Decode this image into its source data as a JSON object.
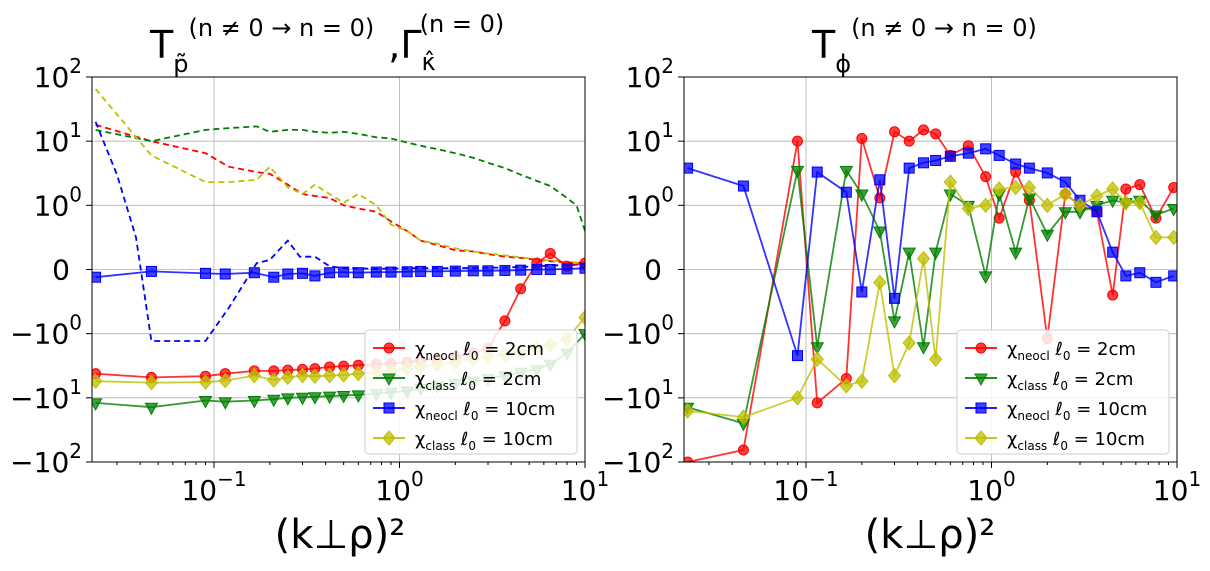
{
  "chart_data": [
    {
      "type": "line",
      "title": {
        "base": "T",
        "sub": "p̃",
        "sup": "(n ≠ 0 → n = 0)",
        "sep": ",",
        "base2": "Γ",
        "sub2": "κ̂",
        "sup2": "(n = 0)"
      },
      "xlabel": "(k⊥ρ)²",
      "xscale": "log",
      "yscale": "symlog",
      "xlim": [
        0.022,
        10
      ],
      "ylim": [
        -100,
        100
      ],
      "xticks": [
        {
          "value": 0.1,
          "label": "10",
          "exp": "−1"
        },
        {
          "value": 1,
          "label": "10",
          "exp": "0"
        },
        {
          "value": 10,
          "label": "10",
          "exp": "1"
        }
      ],
      "yticks": [
        {
          "value": 100,
          "label": "10",
          "exp": "2"
        },
        {
          "value": 10,
          "label": "10",
          "exp": "1"
        },
        {
          "value": 1,
          "label": "10",
          "exp": "0"
        },
        {
          "value": 0,
          "label": "0",
          "exp": ""
        },
        {
          "value": -1,
          "label": "−10",
          "exp": "0"
        },
        {
          "value": -10,
          "label": "−10",
          "exp": "1"
        },
        {
          "value": -100,
          "label": "−10",
          "exp": "2"
        }
      ],
      "legend_position": "lower-right",
      "series": [
        {
          "name": "χneocl ℓ0 = 2cm",
          "legend": {
            "chi": "χ",
            "sub": "neocl",
            "rest": " ℓ",
            "rsub": "0",
            "tail": " = 2cm"
          },
          "color": "#ff0000",
          "marker": "circle",
          "style": "solid",
          "x": [
            0.023,
            0.046,
            0.09,
            0.115,
            0.165,
            0.21,
            0.25,
            0.3,
            0.35,
            0.42,
            0.5,
            0.6,
            0.75,
            0.9,
            1.1,
            1.3,
            1.6,
            2.0,
            2.5,
            3.0,
            3.7,
            4.5,
            5.5,
            6.5,
            8.0,
            10.0
          ],
          "y": [
            -4.2,
            -4.8,
            -4.6,
            -4.2,
            -3.8,
            -3.8,
            -3.7,
            -3.6,
            -3.5,
            -3.3,
            -3.2,
            -3.1,
            -3.0,
            -2.9,
            -2.8,
            -2.6,
            -2.5,
            -2.3,
            -2.0,
            -1.7,
            -0.8,
            -0.3,
            0.1,
            0.25,
            0.05,
            0.1
          ]
        },
        {
          "name": "χclass ℓ0 = 2cm",
          "legend": {
            "chi": "χ",
            "sub": "class",
            "rest": " ℓ",
            "rsub": "0",
            "tail": " = 2cm"
          },
          "color": "#008000",
          "marker": "triangle-down",
          "style": "solid",
          "x": [
            0.023,
            0.046,
            0.09,
            0.115,
            0.165,
            0.21,
            0.25,
            0.3,
            0.35,
            0.42,
            0.5,
            0.6,
            0.75,
            0.9,
            1.1,
            1.3,
            1.6,
            2.0,
            2.5,
            3.0,
            3.7,
            4.5,
            5.5,
            6.5,
            8.0,
            10.0
          ],
          "y": [
            -12,
            -14,
            -11,
            -11.5,
            -11,
            -10.5,
            -10,
            -9.8,
            -9.6,
            -9.4,
            -9.2,
            -9.0,
            -8.6,
            -8.2,
            -7.8,
            -7.2,
            -6.5,
            -6,
            -5.5,
            -5,
            -4.5,
            -4.0,
            -3.6,
            -3.0,
            -2.0,
            -1.0
          ]
        },
        {
          "name": "χneocl ℓ0 = 10cm",
          "legend": {
            "chi": "χ",
            "sub": "neocl",
            "rest": " ℓ",
            "rsub": "0",
            "tail": " = 10cm"
          },
          "color": "#0000ff",
          "marker": "square",
          "style": "solid",
          "x": [
            0.023,
            0.046,
            0.09,
            0.115,
            0.165,
            0.21,
            0.25,
            0.3,
            0.35,
            0.42,
            0.5,
            0.6,
            0.75,
            0.9,
            1.1,
            1.3,
            1.6,
            2.0,
            2.5,
            3.0,
            3.7,
            4.5,
            5.5,
            6.5,
            8.0,
            10.0
          ],
          "y": [
            -0.12,
            -0.03,
            -0.06,
            -0.07,
            -0.05,
            -0.12,
            -0.07,
            -0.06,
            -0.1,
            -0.05,
            -0.04,
            -0.05,
            -0.04,
            -0.04,
            -0.035,
            -0.03,
            -0.03,
            -0.025,
            -0.02,
            -0.02,
            -0.015,
            -0.01,
            0.0,
            0.0,
            0.01,
            0.02
          ]
        },
        {
          "name": "χclass ℓ0 = 10cm",
          "legend": {
            "chi": "χ",
            "sub": "class",
            "rest": " ℓ",
            "rsub": "0",
            "tail": " = 10cm"
          },
          "color": "#bfbf00",
          "marker": "diamond",
          "style": "solid",
          "x": [
            0.023,
            0.046,
            0.09,
            0.115,
            0.165,
            0.21,
            0.25,
            0.3,
            0.35,
            0.42,
            0.5,
            0.6,
            0.75,
            0.9,
            1.1,
            1.3,
            1.6,
            2.0,
            2.5,
            3.0,
            3.7,
            4.5,
            5.5,
            6.5,
            8.0,
            10.0
          ],
          "y": [
            -5.5,
            -5.8,
            -5.7,
            -5.4,
            -4.5,
            -5.3,
            -4.8,
            -4.5,
            -4.6,
            -4.5,
            -4.4,
            -4.2,
            -4.0,
            -3.8,
            -3.5,
            -3.2,
            -3.0,
            -2.8,
            -2.5,
            -2.3,
            -2.1,
            -1.9,
            -1.7,
            -1.5,
            -1.2,
            -0.75
          ]
        },
        {
          "name": "red dashed",
          "color": "#ff0000",
          "marker": "none",
          "style": "dashed",
          "x": [
            0.023,
            0.046,
            0.09,
            0.12,
            0.17,
            0.2,
            0.25,
            0.3,
            0.35,
            0.42,
            0.5,
            0.6,
            0.75,
            0.9,
            1.1,
            1.3,
            1.6,
            2.0,
            2.5,
            3.0,
            3.7,
            4.5,
            5.5,
            6.5,
            8.0,
            10.0
          ],
          "y": [
            18,
            10,
            6.5,
            4,
            3.3,
            3.1,
            2.1,
            1.5,
            1.4,
            1.3,
            1.0,
            0.95,
            0.9,
            0.75,
            0.6,
            0.45,
            0.38,
            0.3,
            0.28,
            0.24,
            0.2,
            0.18,
            0.15,
            0.13,
            0.11,
            0.1
          ]
        },
        {
          "name": "green dashed",
          "color": "#008000",
          "marker": "none",
          "style": "dashed",
          "x": [
            0.023,
            0.046,
            0.09,
            0.12,
            0.17,
            0.2,
            0.25,
            0.3,
            0.35,
            0.42,
            0.5,
            0.6,
            0.75,
            0.9,
            1.1,
            1.3,
            1.6,
            2.0,
            2.5,
            3.0,
            3.7,
            4.5,
            5.5,
            6.5,
            8.0,
            9.0,
            10.0
          ],
          "y": [
            15,
            10,
            15,
            16,
            17,
            14,
            15,
            15,
            14,
            13.5,
            14,
            13,
            11.5,
            11,
            9.5,
            8.5,
            7.5,
            6.5,
            5.5,
            4.6,
            3.8,
            3.0,
            2.4,
            2.0,
            1.3,
            1.0,
            0.6
          ]
        },
        {
          "name": "blue dashed",
          "color": "#0000ff",
          "marker": "none",
          "style": "dashed",
          "x": [
            0.023,
            0.03,
            0.038,
            0.046,
            0.06,
            0.075,
            0.09,
            0.12,
            0.17,
            0.2,
            0.25,
            0.29,
            0.35,
            0.42,
            0.5,
            0.6,
            0.75,
            0.9,
            1.1,
            1.3,
            1.6,
            2.0,
            2.5,
            3.0,
            3.7,
            4.5,
            5.5,
            6.5,
            8.0,
            10.0
          ],
          "y": [
            20,
            3,
            0.5,
            -1.3,
            -1.3,
            -1.3,
            -1.3,
            -0.6,
            0.1,
            0.15,
            0.45,
            0.2,
            0.2,
            0.05,
            0.02,
            0.02,
            0.01,
            0.015,
            0.02,
            0.02,
            0.02,
            0.02,
            0.025,
            0.03,
            0.03,
            0.04,
            0.05,
            0.06,
            0.07,
            0.08
          ]
        },
        {
          "name": "yellow dashed",
          "color": "#bfbf00",
          "marker": "none",
          "style": "dashed",
          "x": [
            0.023,
            0.046,
            0.09,
            0.12,
            0.17,
            0.2,
            0.25,
            0.3,
            0.35,
            0.42,
            0.5,
            0.6,
            0.75,
            0.9,
            1.1,
            1.3,
            1.6,
            2.0,
            2.5,
            3.0,
            3.7,
            4.5,
            5.5,
            6.5,
            8.0,
            10.0
          ],
          "y": [
            65,
            6,
            2.3,
            2.3,
            2.5,
            4,
            1.9,
            1.5,
            2.1,
            1.5,
            1.1,
            1.5,
            1.0,
            0.7,
            0.6,
            0.45,
            0.4,
            0.33,
            0.28,
            0.25,
            0.22,
            0.19,
            0.16,
            0.14,
            0.12,
            0.1
          ]
        }
      ]
    },
    {
      "type": "line",
      "title": {
        "base": "T",
        "sub": "ϕ",
        "sup": "(n ≠ 0 → n = 0)"
      },
      "xlabel": "(k⊥ρ)²",
      "xscale": "log",
      "yscale": "symlog",
      "xlim": [
        0.022,
        10
      ],
      "ylim": [
        -100,
        100
      ],
      "xticks": [
        {
          "value": 0.1,
          "label": "10",
          "exp": "−1"
        },
        {
          "value": 1,
          "label": "10",
          "exp": "0"
        },
        {
          "value": 10,
          "label": "10",
          "exp": "1"
        }
      ],
      "yticks": [
        {
          "value": 100,
          "label": "10",
          "exp": "2"
        },
        {
          "value": 10,
          "label": "10",
          "exp": "1"
        },
        {
          "value": 1,
          "label": "10",
          "exp": "0"
        },
        {
          "value": 0,
          "label": "0",
          "exp": ""
        },
        {
          "value": -1,
          "label": "−10",
          "exp": "0"
        },
        {
          "value": -10,
          "label": "−10",
          "exp": "1"
        },
        {
          "value": -100,
          "label": "−10",
          "exp": "2"
        }
      ],
      "legend_position": "lower-right",
      "series": [
        {
          "name": "χneocl ℓ0 = 2cm",
          "legend": {
            "chi": "χ",
            "sub": "neocl",
            "rest": " ℓ",
            "rsub": "0",
            "tail": " = 2cm"
          },
          "color": "#ff0000",
          "marker": "circle",
          "style": "solid",
          "x": [
            0.023,
            0.046,
            0.09,
            0.115,
            0.165,
            0.2,
            0.25,
            0.3,
            0.36,
            0.43,
            0.5,
            0.6,
            0.75,
            0.93,
            1.1,
            1.35,
            1.6,
            2.0,
            2.5,
            3.0,
            3.7,
            4.5,
            5.3,
            6.3,
            7.7,
            9.6
          ],
          "y": [
            -100,
            -65,
            10,
            -12,
            -5,
            11,
            1.3,
            14,
            10,
            15,
            13,
            6,
            8.5,
            2.8,
            0.8,
            3.3,
            1.2,
            -1.2,
            1.5,
            1.0,
            0.9,
            -0.4,
            1.8,
            2.1,
            0.8,
            1.9
          ]
        },
        {
          "name": "χclass ℓ0 = 2cm",
          "legend": {
            "chi": "χ",
            "sub": "class",
            "rest": " ℓ",
            "rsub": "0",
            "tail": " = 2cm"
          },
          "color": "#008000",
          "marker": "triangle-down",
          "style": "solid",
          "x": [
            0.023,
            0.046,
            0.09,
            0.115,
            0.165,
            0.2,
            0.25,
            0.3,
            0.36,
            0.43,
            0.5,
            0.6,
            0.75,
            0.93,
            1.1,
            1.35,
            1.6,
            2.0,
            2.5,
            3.0,
            3.7,
            4.5,
            5.3,
            6.3,
            7.7,
            9.6
          ],
          "y": [
            -14,
            -25,
            3.5,
            -1.6,
            3.5,
            1.5,
            0.6,
            -0.8,
            0.27,
            -1.6,
            0.27,
            1.5,
            1.0,
            -0.1,
            1.5,
            0.27,
            1.3,
            0.55,
            0.9,
            0.9,
            1.0,
            1.2,
            1.1,
            1.2,
            0.85,
            0.95
          ]
        },
        {
          "name": "χneocl ℓ0 = 10cm",
          "legend": {
            "chi": "χ",
            "sub": "neocl",
            "rest": " ℓ",
            "rsub": "0",
            "tail": " = 10cm"
          },
          "color": "#0000ff",
          "marker": "square",
          "style": "solid",
          "x": [
            0.023,
            0.046,
            0.09,
            0.115,
            0.165,
            0.2,
            0.25,
            0.3,
            0.36,
            0.43,
            0.5,
            0.6,
            0.75,
            0.93,
            1.1,
            1.35,
            1.6,
            2.0,
            2.5,
            3.0,
            3.7,
            4.5,
            5.3,
            6.3,
            7.7,
            9.6
          ],
          "y": [
            3.8,
            2.0,
            -2.2,
            3.3,
            1.6,
            -0.35,
            2.5,
            -0.45,
            3.8,
            4.6,
            5.0,
            5.8,
            6.5,
            7.6,
            6.0,
            4.4,
            3.8,
            3.2,
            2.3,
            1.2,
            0.9,
            0.27,
            -0.1,
            -0.05,
            -0.2,
            -0.1
          ]
        },
        {
          "name": "χclass ℓ0 = 10cm",
          "legend": {
            "chi": "χ",
            "sub": "class",
            "rest": " ℓ",
            "rsub": "0",
            "tail": " = 10cm"
          },
          "color": "#bfbf00",
          "marker": "diamond",
          "style": "solid",
          "x": [
            0.023,
            0.046,
            0.09,
            0.115,
            0.165,
            0.2,
            0.25,
            0.3,
            0.36,
            0.43,
            0.5,
            0.6,
            0.75,
            0.93,
            1.1,
            1.35,
            1.6,
            2.0,
            2.5,
            3.0,
            3.7,
            4.5,
            5.3,
            6.3,
            7.7,
            9.6
          ],
          "y": [
            -16,
            -20,
            -10,
            -2.5,
            -6.5,
            -5.5,
            -0.2,
            -4.5,
            -1.4,
            0.17,
            -2.5,
            2.3,
            0.95,
            1.0,
            1.8,
            1.9,
            1.9,
            1.0,
            1.5,
            1.0,
            1.4,
            1.8,
            1.1,
            1.1,
            0.5,
            0.5
          ]
        }
      ]
    }
  ]
}
